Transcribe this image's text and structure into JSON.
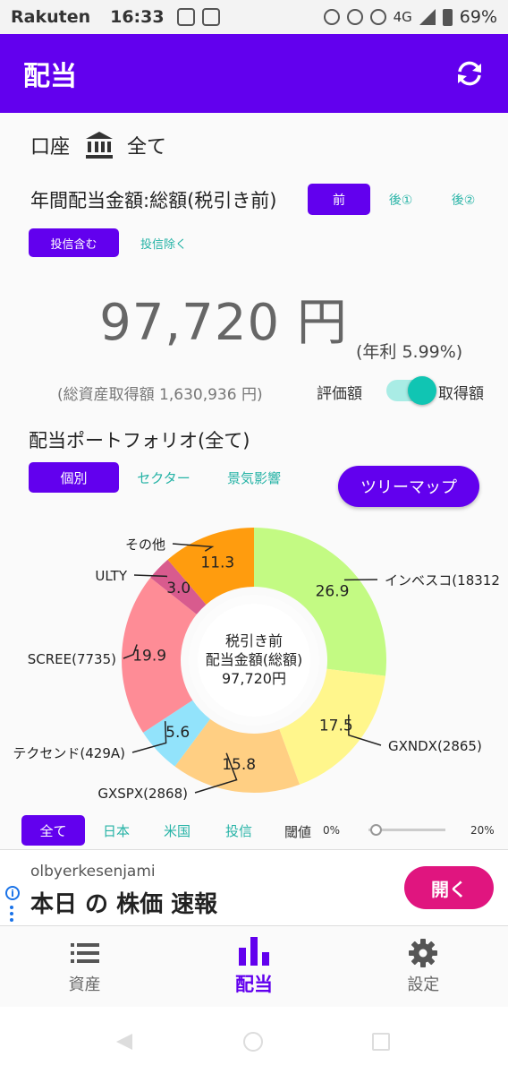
{
  "status_bar": {
    "carrier": "Rakuten",
    "time": "16:33",
    "network": "4G",
    "battery": "69%"
  },
  "app_bar": {
    "title": "配当"
  },
  "account": {
    "label": "口座",
    "value": "全て"
  },
  "dividend_type": {
    "label": "年間配当金額:総額(税引き前)",
    "options": [
      "前",
      "後①",
      "後②"
    ],
    "selected": "前"
  },
  "fund_filter": {
    "options": [
      "投信含む",
      "投信除く"
    ],
    "selected": "投信含む"
  },
  "summary": {
    "amount": "97,720 円",
    "annual_rate": "(年利 5.99%)",
    "total_cost": "(総資産取得額 1,630,936 円)",
    "toggle_left": "評価額",
    "toggle_right": "取得額",
    "toggle_state": "取得額"
  },
  "portfolio": {
    "title": "配当ポートフォリオ(全て)",
    "view_options": [
      "個別",
      "セクター",
      "景気影響"
    ],
    "selected_view": "個別",
    "treemap_button": "ツリーマップ"
  },
  "chart_data": {
    "type": "pie",
    "center_lines": [
      "税引き前",
      "配当金額(総額)",
      "97,720円"
    ],
    "slices": [
      {
        "label": "インベスコ(18312",
        "value": 26.9,
        "color": "#c3fa83"
      },
      {
        "label": "GXNDX(2865)",
        "value": 17.5,
        "color": "#fff68c"
      },
      {
        "label": "GXSPX(2868)",
        "value": 15.8,
        "color": "#ffcf83"
      },
      {
        "label": "テクセンド(429A)",
        "value": 5.6,
        "color": "#92e3fb"
      },
      {
        "label": "SCREE(7735)",
        "value": 19.9,
        "color": "#fe8c96"
      },
      {
        "label": "ULTY",
        "value": 3.0,
        "color": "#d85b8e"
      },
      {
        "label": "その他",
        "value": 11.3,
        "color": "#ff9c0e"
      }
    ]
  },
  "region_filter": {
    "options": [
      "全て",
      "日本",
      "米国",
      "投信"
    ],
    "selected": "全て",
    "threshold_label": "閾値",
    "threshold_min": "0%",
    "threshold_max": "20%",
    "threshold_value": 0
  },
  "ad": {
    "source": "olbyerkesenjami",
    "headline": "本日 の 株価 速報",
    "button": "開く"
  },
  "bottom_nav": {
    "items": [
      {
        "label": "資産",
        "icon": "list-icon"
      },
      {
        "label": "配当",
        "icon": "bar-chart-icon"
      },
      {
        "label": "設定",
        "icon": "gear-icon"
      }
    ],
    "active": "配当"
  }
}
